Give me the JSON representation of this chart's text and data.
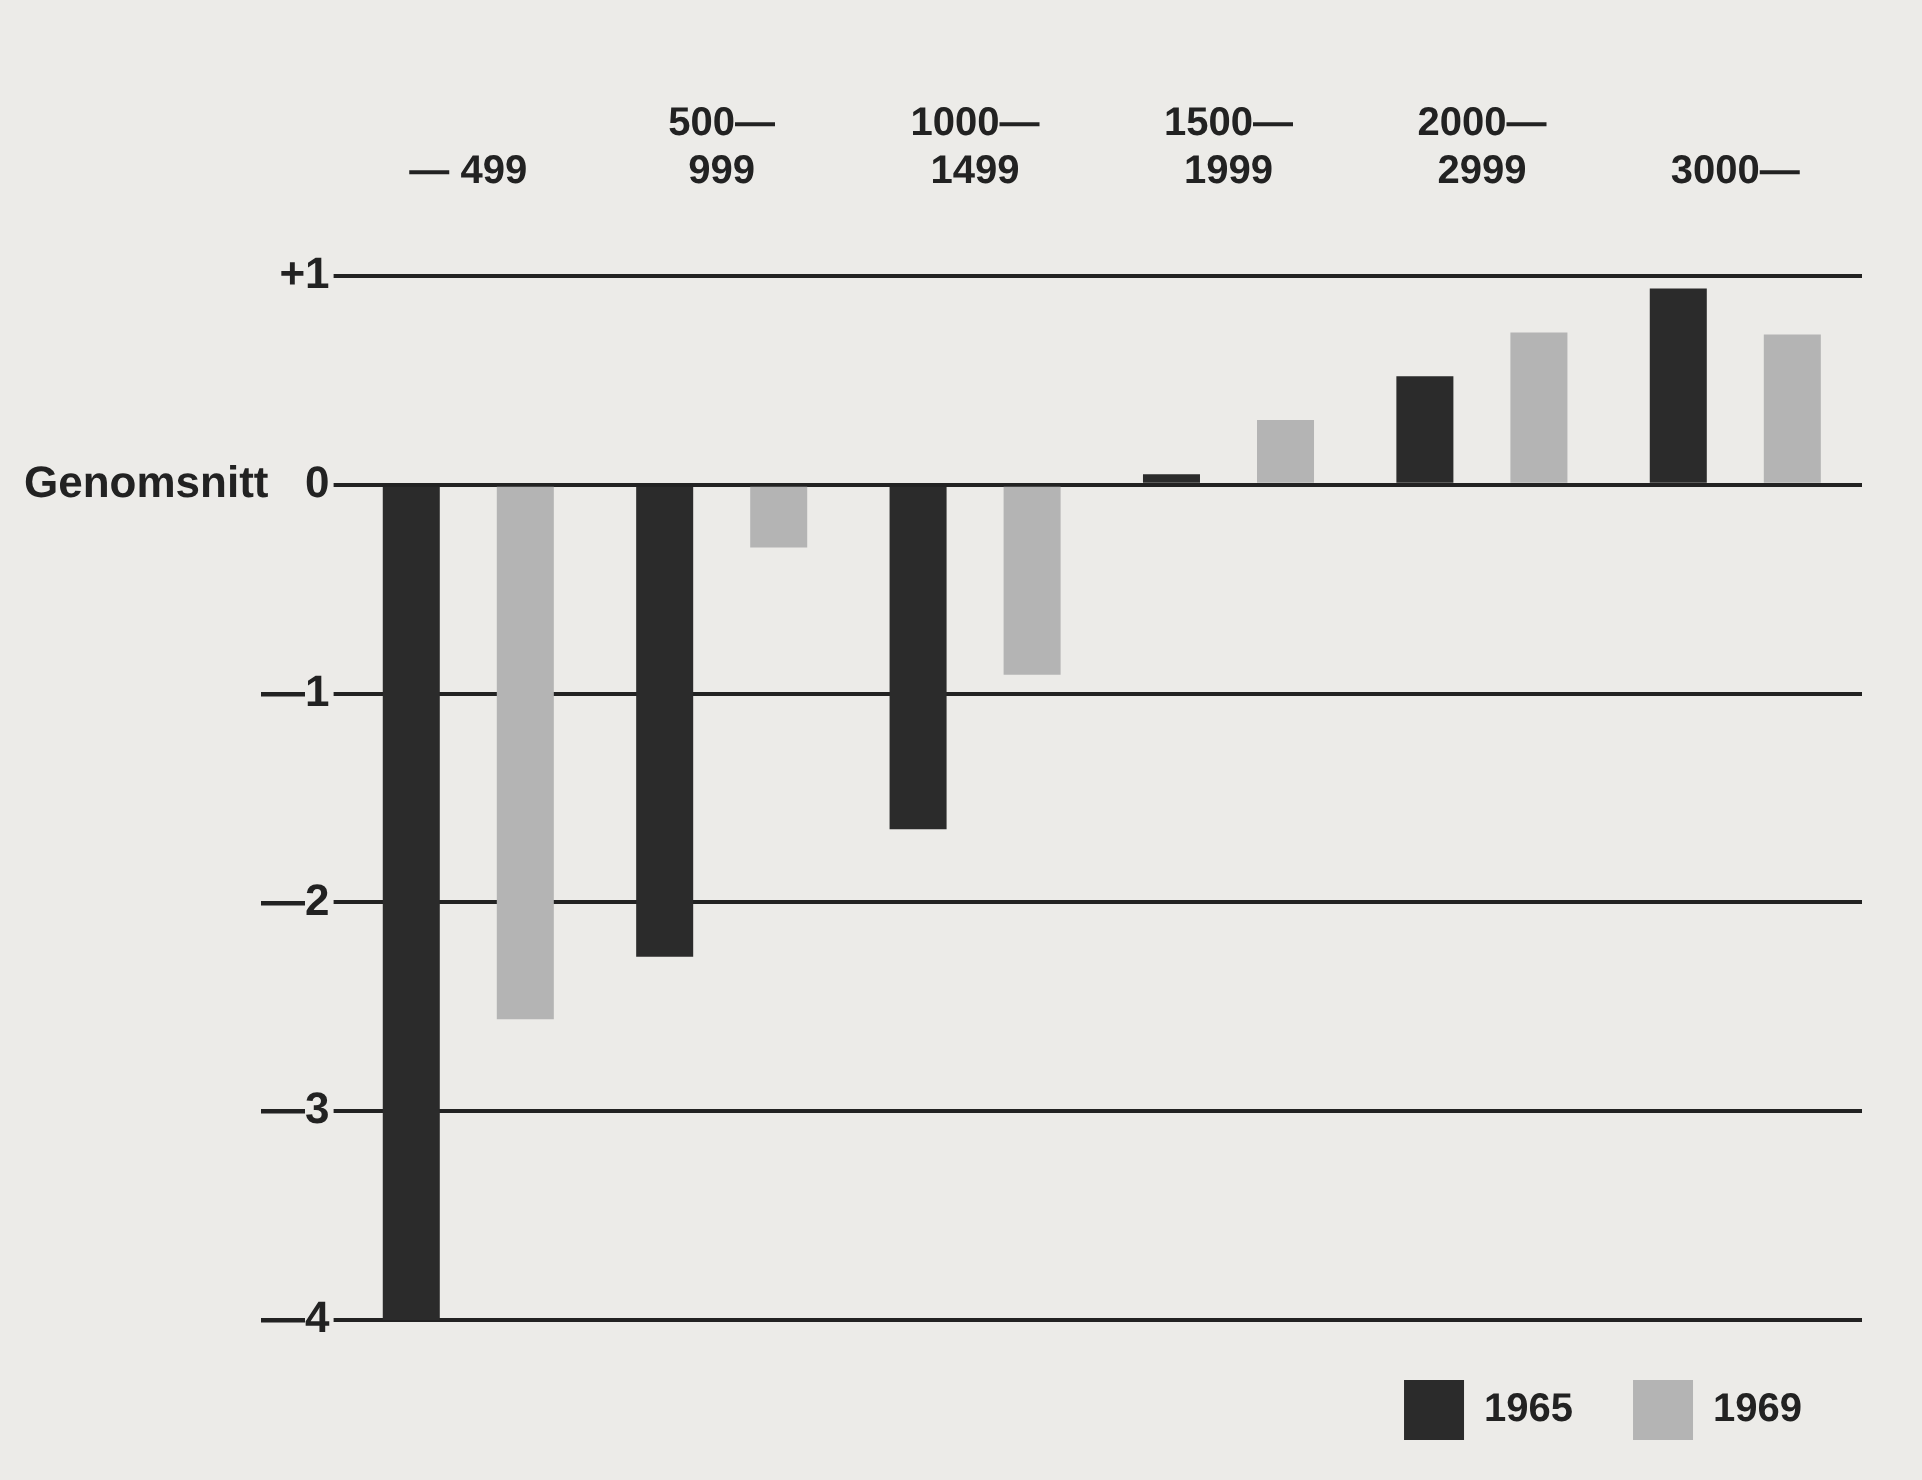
{
  "chart_data": {
    "type": "bar",
    "categories": [
      "— 499",
      "500—\n999",
      "1000—\n1499",
      "1500—\n1999",
      "2000—\n2999",
      "3000—"
    ],
    "series": [
      {
        "name": "1965",
        "color": "#2b2b2b",
        "values": [
          -4.0,
          -2.26,
          -1.65,
          0.05,
          0.52,
          0.94
        ]
      },
      {
        "name": "1969",
        "color": "#b4b4b4",
        "values": [
          -2.56,
          -0.3,
          -0.91,
          0.31,
          0.73,
          0.72
        ]
      }
    ],
    "ylim": [
      -4,
      1
    ],
    "yticks": [
      {
        "value": 1,
        "label": "+1"
      },
      {
        "value": 0,
        "label": "Genomsnitt   0"
      },
      {
        "value": -1,
        "label": "—1"
      },
      {
        "value": -2,
        "label": "—2"
      },
      {
        "value": -3,
        "label": "—3"
      },
      {
        "value": -4,
        "label": "—4"
      }
    ],
    "grid": "y",
    "legend": "bottom right"
  }
}
